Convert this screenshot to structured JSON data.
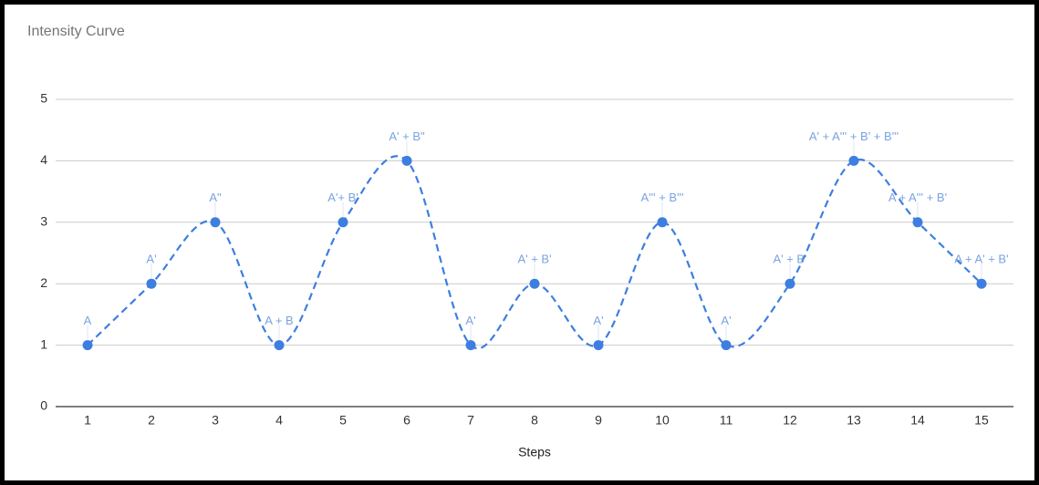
{
  "chart_data": {
    "type": "line",
    "title": "Intensity Curve",
    "x_label": "Steps",
    "categories": [
      "1",
      "2",
      "3",
      "4",
      "5",
      "6",
      "7",
      "8",
      "9",
      "10",
      "11",
      "12",
      "13",
      "14",
      "15"
    ],
    "series": [
      {
        "name": "Intensity",
        "color": "#3d7ee0",
        "values": [
          1,
          2,
          3,
          1,
          3,
          4,
          1,
          2,
          1,
          3,
          1,
          2,
          4,
          3,
          2
        ],
        "point_labels": [
          "A",
          "A'",
          "A\"",
          "A + B",
          "A'+ B'",
          "A' + B\"",
          "A'",
          "A' + B'",
          "A'",
          "A''' + B'''",
          "A'",
          "A' + B'",
          "A' + A''' + B' + B'''",
          "A + A''' + B'",
          "A + A' + B'"
        ]
      }
    ],
    "ylim": [
      0,
      5
    ],
    "yticks": [
      0,
      1,
      2,
      3,
      4,
      5
    ],
    "grid": true,
    "smooth": true,
    "dashed": true
  }
}
